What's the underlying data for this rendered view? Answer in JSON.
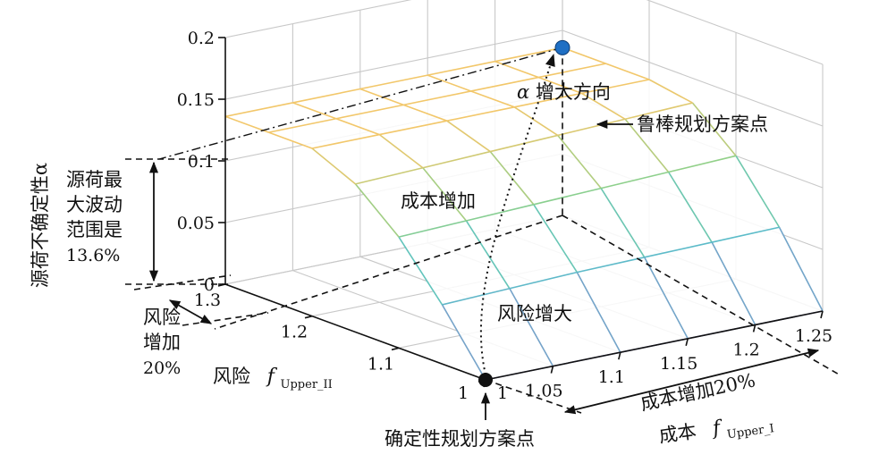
{
  "chart_data": {
    "type": "surface",
    "x_axis": {
      "name": "成本",
      "symbol": "f",
      "subscript": "Upper_I",
      "ticks": [
        "1",
        "1.05",
        "1.1",
        "1.15",
        "1.2",
        "1.25"
      ],
      "range": [
        1,
        1.25
      ]
    },
    "y_axis": {
      "name": "风险",
      "symbol": "f",
      "subscript": "Upper_II",
      "ticks": [
        "1",
        "1.1",
        "1.2",
        "1.3"
      ],
      "range": [
        1,
        1.3
      ]
    },
    "z_axis": {
      "label": "源荷不确定性α",
      "ticks": [
        "0",
        "0.05",
        "0.1",
        "0.15",
        "0.2"
      ],
      "range": [
        0,
        0.2
      ]
    },
    "x_grid": [
      1,
      1.05,
      1.1,
      1.15,
      1.2,
      1.25
    ],
    "y_grid": [
      1,
      1.05,
      1.1,
      1.15,
      1.2,
      1.25,
      1.3
    ],
    "surface_z": [
      [
        0.0,
        0.048,
        0.09,
        0.12,
        0.136,
        0.136,
        0.136
      ],
      [
        0.0,
        0.05,
        0.092,
        0.122,
        0.136,
        0.136,
        0.136
      ],
      [
        0.0,
        0.052,
        0.094,
        0.124,
        0.136,
        0.136,
        0.136
      ],
      [
        0.0,
        0.053,
        0.096,
        0.126,
        0.136,
        0.136,
        0.136
      ],
      [
        0.0,
        0.054,
        0.098,
        0.128,
        0.136,
        0.136,
        0.136
      ],
      [
        0.0,
        0.055,
        0.1,
        0.13,
        0.136,
        0.136,
        0.136
      ]
    ],
    "colors": {
      "surface_low": "#8b8fc9",
      "surface_mid": "#56c1c9",
      "surface_green": "#8fd08a",
      "surface_high": "#f2c76a",
      "robust_point": "#1f6fc4",
      "deterministic_point": "#111111"
    },
    "points": {
      "deterministic": {
        "x": 1,
        "y": 1,
        "z": 0,
        "label": "确定性规划方案点"
      },
      "robust": {
        "x": 1.25,
        "y": 1.3,
        "z": 0.136,
        "label": "鲁棒规划方案点"
      }
    },
    "annotations": {
      "alpha_dir_symbol": "α",
      "alpha_dir_text": "增大方向",
      "cost_increase": "成本增加",
      "risk_increase": "风险增大",
      "range_lines": [
        "源荷最",
        "大波动",
        "范围是",
        "13.6%"
      ],
      "risk_add_lines": [
        "风险",
        "增加",
        "20%"
      ],
      "cost_add": "成本增加20%"
    }
  }
}
